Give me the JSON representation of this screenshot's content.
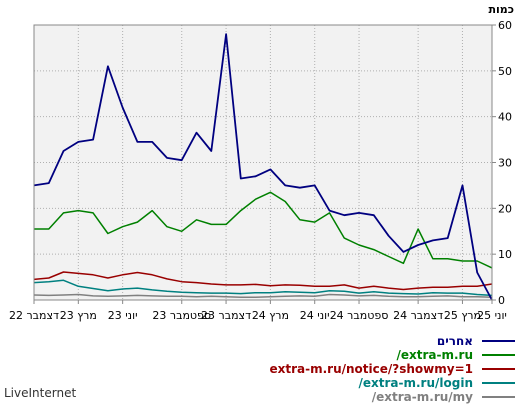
{
  "chart_data": {
    "type": "line",
    "ylabel": "כמות",
    "ylim": [
      0,
      60
    ],
    "yticks": [
      0,
      10,
      20,
      30,
      40,
      50,
      60
    ],
    "grid": true,
    "x_ticks": [
      {
        "index": 0,
        "label": "יוני 25"
      },
      {
        "index": 2,
        "label": "מרץ 25"
      },
      {
        "index": 5,
        "label": "דצמבר 24"
      },
      {
        "index": 9,
        "label": "ספטמבר 24"
      },
      {
        "index": 12,
        "label": "יוני 24"
      },
      {
        "index": 15,
        "label": "מרץ 24"
      },
      {
        "index": 18,
        "label": "דצמבר 23"
      },
      {
        "index": 21,
        "label": "ספטמבר 23"
      },
      {
        "index": 25,
        "label": "יוני 23"
      },
      {
        "index": 28,
        "label": "מרץ 23"
      },
      {
        "index": 31,
        "label": "דצמבר 22"
      }
    ],
    "x_count": 32,
    "series": [
      {
        "name": "אחרים",
        "color": "#000080",
        "values": [
          0,
          6,
          25,
          13.5,
          13,
          12,
          10.5,
          14,
          18.5,
          19,
          18.5,
          19.5,
          25,
          24.5,
          25,
          28.5,
          27,
          26.5,
          58,
          32.5,
          36.5,
          30.5,
          31,
          34.5,
          34.5,
          42,
          51,
          35,
          34.5,
          32.5,
          25.5,
          25
        ]
      },
      {
        "name": "/extra-m.ru",
        "color": "#008000",
        "values": [
          7,
          8.5,
          8.5,
          9,
          9,
          15.5,
          8,
          9.5,
          11,
          12,
          13.5,
          19,
          17,
          17.5,
          21.5,
          23.5,
          22,
          19.5,
          16.5,
          16.5,
          17.5,
          15,
          16,
          19.5,
          17,
          16,
          14.5,
          19,
          19.5,
          19,
          15.5,
          15.5
        ]
      },
      {
        "name": "extra-m.ru/notice/?showmy=1",
        "color": "#990000",
        "values": [
          3.5,
          3,
          3,
          2.8,
          2.8,
          2.6,
          2.3,
          2.6,
          3,
          2.6,
          3.3,
          3,
          3,
          3.2,
          3.3,
          3.1,
          3.4,
          3.3,
          3.3,
          3.5,
          3.8,
          4,
          4.6,
          5.5,
          6,
          5.5,
          4.8,
          5.5,
          5.8,
          6.1,
          4.8,
          4.5
        ]
      },
      {
        "name": "/extra-m.ru/login",
        "color": "#008080",
        "values": [
          1,
          1.2,
          1.5,
          1.5,
          1.6,
          1.3,
          1.4,
          1.5,
          1.8,
          1.5,
          1.9,
          2,
          1.6,
          1.7,
          1.8,
          1.6,
          1.6,
          1.4,
          1.5,
          1.5,
          1.6,
          1.7,
          1.9,
          2.2,
          2.6,
          2.4,
          2,
          2.5,
          3,
          4.3,
          4,
          3.8
        ]
      },
      {
        "name": "/extra-m.ru/my",
        "color": "#808080",
        "values": [
          0.6,
          0.7,
          0.7,
          0.9,
          0.8,
          0.7,
          0.7,
          0.8,
          1,
          0.9,
          1.1,
          1.2,
          0.8,
          0.9,
          0.8,
          0.7,
          0.6,
          0.6,
          0.7,
          0.8,
          0.7,
          0.8,
          0.8,
          0.9,
          1,
          0.9,
          0.8,
          0.9,
          1.2,
          1.1,
          1,
          1.1
        ]
      }
    ]
  },
  "footer": {
    "brand": "LiveInternet"
  }
}
